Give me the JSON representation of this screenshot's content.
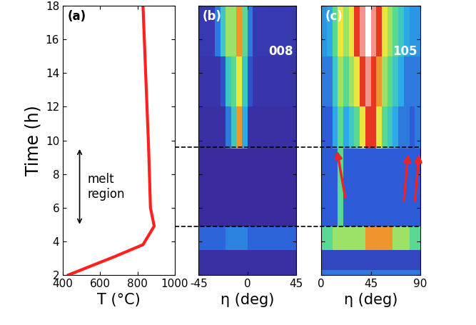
{
  "chart_data": [
    {
      "type": "line",
      "panel": "(a)",
      "x": [
        430,
        680,
        830,
        890,
        870,
        860,
        830
      ],
      "y": [
        2,
        3.1,
        3.8,
        4.9,
        6.0,
        9.6,
        18
      ],
      "color": "#ff2020",
      "xlabel": "T (°C)",
      "ylabel": "Time (h)",
      "xlim": [
        400,
        1000
      ],
      "ylim": [
        2,
        18
      ],
      "xticks": [
        400,
        600,
        800,
        1000
      ],
      "yticks": [
        2,
        4,
        6,
        8,
        10,
        12,
        14,
        16,
        18
      ],
      "annotation": {
        "text": "melt region",
        "range": [
          4.9,
          9.6
        ]
      },
      "grid": false
    },
    {
      "type": "heatmap",
      "panel": "(b)",
      "label": "008",
      "x_edges": [
        -45,
        -40,
        -35,
        -30,
        -25,
        -20,
        -15,
        -10,
        -5,
        0,
        5,
        10,
        15,
        20,
        25,
        30,
        35,
        40,
        45
      ],
      "y_edges": [
        2,
        2.3,
        3.5,
        4.9,
        9.5,
        12,
        15,
        18
      ],
      "cells": [
        [
          0.3,
          0.3,
          0.3,
          0.3,
          0.3,
          0.3,
          0.3,
          0.3,
          0.3,
          0.3,
          0.3,
          0.3,
          0.3,
          0.3,
          0.3,
          0.3,
          0.3,
          0.3
        ],
        [
          0.3,
          0.3,
          0.3,
          0.3,
          0.3,
          0.3,
          0.3,
          0.3,
          0.3,
          0.3,
          0.3,
          0.3,
          0.3,
          0.3,
          0.3,
          0.3,
          0.3,
          0.3
        ],
        [
          1.3,
          1.3,
          1.3,
          1.3,
          1.3,
          1.6,
          1.6,
          1.6,
          1.6,
          1.3,
          1.3,
          1.3,
          1.3,
          1.3,
          1.3,
          1.3,
          1.3,
          1.3
        ],
        [
          0.2,
          0.2,
          0.2,
          0.2,
          0.2,
          0.2,
          0.2,
          0.2,
          0.2,
          0.2,
          0.2,
          0.2,
          0.2,
          0.2,
          0.2,
          0.2,
          0.2,
          0.2
        ],
        [
          0.3,
          0.3,
          0.3,
          0.3,
          0.3,
          1.5,
          2.5,
          4.5,
          2,
          0.3,
          0.3,
          0.3,
          0.3,
          0.3,
          0.3,
          0.3,
          0.3,
          0.3
        ],
        [
          0.4,
          0.4,
          0.4,
          0.4,
          1,
          2.5,
          3,
          4,
          2.5,
          1,
          0.4,
          0.4,
          0.4,
          0.4,
          0.4,
          0.4,
          0.4,
          0.4
        ],
        [
          0.5,
          0.5,
          0.5,
          1.5,
          2.5,
          3.5,
          3.5,
          4.5,
          3,
          1.5,
          0.5,
          0.5,
          0.5,
          0.5,
          0.5,
          0.5,
          0.5,
          0.5
        ]
      ],
      "xlabel": "η (deg)",
      "xlim": [
        -45,
        45
      ],
      "ylim": [
        2,
        18
      ],
      "xticks": [
        -45,
        0,
        45
      ],
      "yticks": [
        2,
        4,
        6,
        8,
        10,
        12,
        14,
        16,
        18
      ],
      "tick_labels": "x"
    },
    {
      "type": "heatmap",
      "panel": "(c)",
      "label": "105",
      "x_edges": [
        0,
        5,
        10,
        15,
        20,
        25,
        30,
        35,
        40,
        45,
        50,
        55,
        60,
        65,
        70,
        75,
        80,
        85,
        90
      ],
      "y_edges": [
        2,
        2.3,
        3.5,
        4.9,
        9.5,
        12,
        15,
        18
      ],
      "cells": [
        [
          1.5,
          1.5,
          1.5,
          1.5,
          1.5,
          1.5,
          1.5,
          1.5,
          1.5,
          1.5,
          1.5,
          1.5,
          1.5,
          1.5,
          1.5,
          1.5,
          1.5,
          1.5
        ],
        [
          0.8,
          0.8,
          0.8,
          0.8,
          0.8,
          0.8,
          0.8,
          0.8,
          0.8,
          0.8,
          0.8,
          0.8,
          0.8,
          0.8,
          0.8,
          0.8,
          0.8,
          0.8
        ],
        [
          3,
          3,
          3.5,
          3.5,
          3.5,
          3.5,
          3.5,
          3.5,
          4.5,
          4.5,
          4.5,
          4.5,
          4.5,
          3.5,
          3.5,
          3.5,
          3,
          3
        ],
        [
          1.2,
          1.2,
          1.2,
          3,
          1.2,
          1.2,
          1.2,
          1.2,
          1.2,
          1.2,
          1.2,
          1.2,
          1.2,
          1.2,
          1.2,
          1.2,
          1.2,
          1.2
        ],
        [
          1.2,
          1.2,
          2,
          3,
          2,
          2.5,
          3,
          4,
          5,
          5,
          4,
          3,
          2.5,
          2,
          1.5,
          1.5,
          1.2,
          1.5
        ],
        [
          1.5,
          1.5,
          2.5,
          3.5,
          3,
          3.5,
          4,
          5,
          5.5,
          5,
          4.5,
          3.5,
          3,
          2.5,
          2,
          1.5,
          1.5,
          1.5
        ],
        [
          1.8,
          2,
          3,
          4,
          3.5,
          4,
          5,
          5.5,
          6,
          5.5,
          5,
          4,
          3.5,
          3,
          2.5,
          2,
          1.8,
          1.8
        ]
      ],
      "arrows": [
        {
          "from": [
            22,
            6.5
          ],
          "to": [
            14,
            9.5
          ]
        },
        {
          "from": [
            75,
            6.3
          ],
          "to": [
            79,
            9.3
          ]
        },
        {
          "from": [
            85,
            6.3
          ],
          "to": [
            89,
            9.3
          ]
        }
      ],
      "xlabel": "η (deg)",
      "xlim": [
        0,
        90
      ],
      "ylim": [
        2,
        18
      ],
      "xticks": [
        0,
        45,
        90
      ],
      "yticks": [
        2,
        4,
        6,
        8,
        10,
        12,
        14,
        16,
        18
      ],
      "tick_labels": "x"
    }
  ]
}
